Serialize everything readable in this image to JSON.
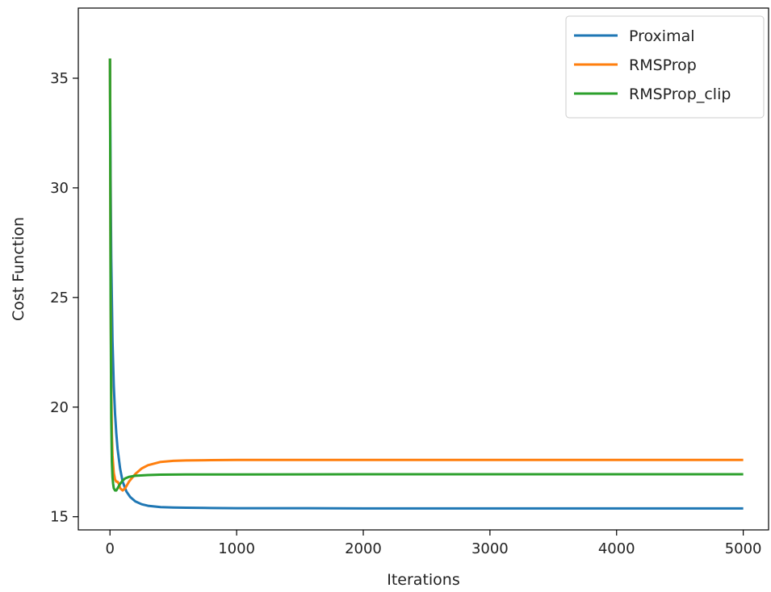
{
  "chart_data": {
    "type": "line",
    "title": "",
    "xlabel": "Iterations",
    "ylabel": "Cost Function",
    "xlim": [
      -250,
      5200
    ],
    "ylim": [
      14.4,
      38.2
    ],
    "xticks": [
      0,
      1000,
      2000,
      3000,
      4000,
      5000
    ],
    "yticks": [
      15,
      20,
      25,
      30,
      35
    ],
    "grid": false,
    "legend_position": "top-right",
    "series": [
      {
        "name": "Proximal",
        "color": "#1f77b4",
        "x": [
          0,
          5,
          10,
          20,
          30,
          40,
          50,
          60,
          80,
          100,
          130,
          160,
          200,
          250,
          300,
          400,
          500,
          600,
          800,
          1000,
          1500,
          2000,
          3000,
          4000,
          5000
        ],
        "y": [
          35.9,
          30.5,
          26.8,
          23.0,
          21.0,
          19.7,
          18.8,
          18.1,
          17.2,
          16.6,
          16.15,
          15.9,
          15.7,
          15.57,
          15.5,
          15.44,
          15.42,
          15.41,
          15.4,
          15.39,
          15.39,
          15.38,
          15.38,
          15.38,
          15.38
        ]
      },
      {
        "name": "RMSProp",
        "color": "#ff7f0e",
        "x": [
          0,
          5,
          10,
          15,
          20,
          30,
          40,
          50,
          60,
          70,
          80,
          100,
          120,
          150,
          200,
          250,
          300,
          400,
          500,
          600,
          800,
          1000,
          1500,
          2000,
          3000,
          4000,
          5000
        ],
        "y": [
          35.9,
          26.0,
          21.0,
          18.8,
          17.8,
          17.0,
          16.7,
          16.6,
          16.6,
          16.5,
          16.3,
          16.2,
          16.3,
          16.6,
          16.95,
          17.2,
          17.35,
          17.5,
          17.55,
          17.57,
          17.58,
          17.59,
          17.59,
          17.59,
          17.59,
          17.59,
          17.59
        ]
      },
      {
        "name": "RMSProp_clip",
        "color": "#2ca02c",
        "x": [
          0,
          5,
          10,
          15,
          20,
          25,
          30,
          40,
          50,
          60,
          70,
          80,
          100,
          120,
          150,
          200,
          300,
          400,
          600,
          1000,
          2000,
          3000,
          4000,
          5000
        ],
        "y": [
          35.9,
          25.0,
          19.5,
          17.5,
          16.8,
          16.5,
          16.3,
          16.2,
          16.2,
          16.3,
          16.4,
          16.5,
          16.65,
          16.75,
          16.82,
          16.87,
          16.9,
          16.92,
          16.93,
          16.93,
          16.94,
          16.94,
          16.94,
          16.94
        ]
      }
    ]
  }
}
